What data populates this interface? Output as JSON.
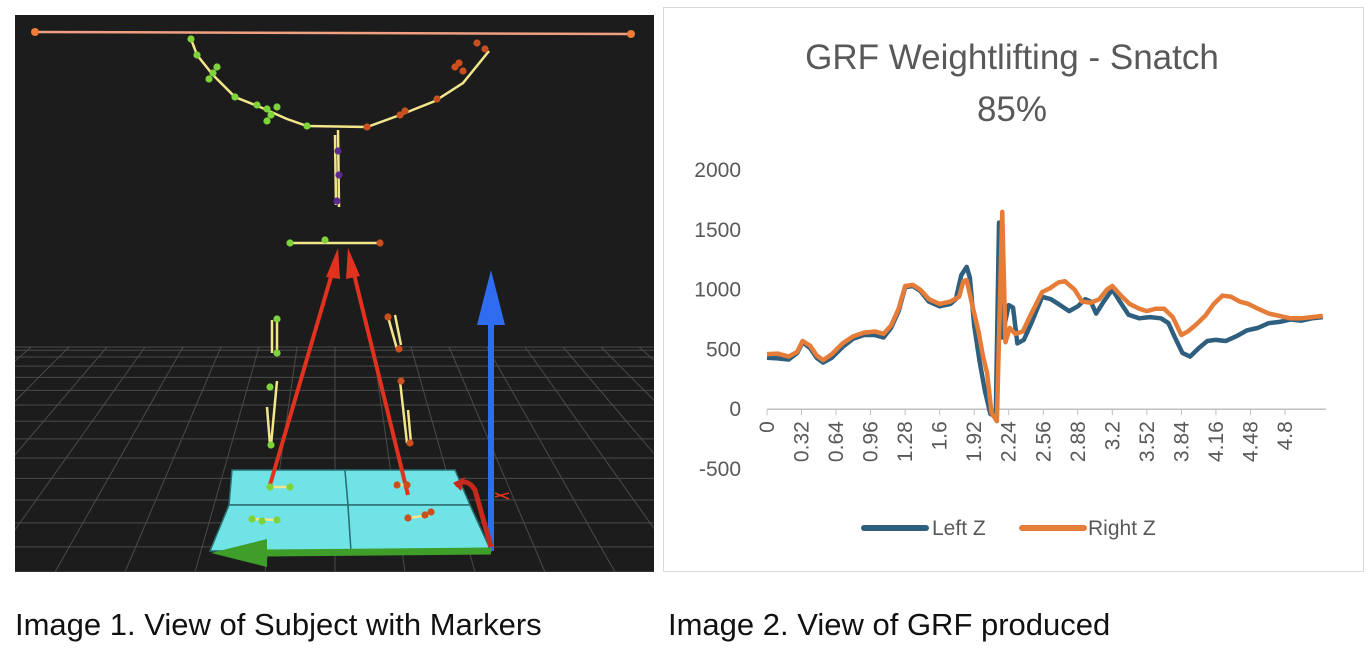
{
  "captions": {
    "left": "Image 1. View of Subject with Markers",
    "right": "Image 2. View of GRF produced"
  },
  "colors": {
    "scene_background": "#1c1c1c",
    "force_plate": "#6fe3e6",
    "bone": "#f2e68a",
    "left_marker": "#7cd33a",
    "right_marker": "#c9501e",
    "spine_marker": "#5a2a8c",
    "grf_vector": "#e0321f",
    "axis_z": "#2f6cf0",
    "axis_x": "#3f9e2a",
    "left_series": "#2e5f7f",
    "right_series": "#e57c37"
  },
  "scene_icons": [
    "force-plate-icon",
    "grf-vector-icon",
    "z-axis-arrow-icon",
    "x-axis-arrow-icon",
    "rotation-gizmo-icon",
    "marker-icon"
  ],
  "chart_data": {
    "type": "line",
    "title_lines": [
      "GRF Weightlifting - Snatch",
      "85%"
    ],
    "xlabel": "",
    "ylabel": "",
    "x_tick_labels": [
      "0",
      "0.32",
      "0.64",
      "0.96",
      "1.28",
      "1.6",
      "1.92",
      "2.24",
      "2.56",
      "2.88",
      "3.2",
      "3.52",
      "3.84",
      "4.16",
      "4.48",
      "4.8"
    ],
    "xlim": [
      0,
      5.18
    ],
    "ylim": [
      -500,
      2000
    ],
    "y_ticks": [
      2000,
      1500,
      1000,
      500,
      0,
      -500
    ],
    "grid": false,
    "legend_position": "bottom",
    "series": [
      {
        "name": "Left Z",
        "color": "#2e5f7f",
        "points": [
          [
            0,
            430
          ],
          [
            0.1,
            425
          ],
          [
            0.2,
            415
          ],
          [
            0.28,
            470
          ],
          [
            0.33,
            560
          ],
          [
            0.4,
            510
          ],
          [
            0.46,
            430
          ],
          [
            0.52,
            390
          ],
          [
            0.6,
            430
          ],
          [
            0.7,
            520
          ],
          [
            0.8,
            590
          ],
          [
            0.9,
            620
          ],
          [
            1.0,
            620
          ],
          [
            1.08,
            600
          ],
          [
            1.15,
            680
          ],
          [
            1.22,
            820
          ],
          [
            1.28,
            1020
          ],
          [
            1.35,
            1030
          ],
          [
            1.42,
            990
          ],
          [
            1.5,
            900
          ],
          [
            1.6,
            860
          ],
          [
            1.7,
            880
          ],
          [
            1.75,
            920
          ],
          [
            1.8,
            1120
          ],
          [
            1.85,
            1190
          ],
          [
            1.88,
            1100
          ],
          [
            1.92,
            700
          ],
          [
            1.97,
            400
          ],
          [
            2.02,
            150
          ],
          [
            2.07,
            -40
          ],
          [
            2.12,
            -60
          ],
          [
            2.15,
            1560
          ],
          [
            2.18,
            600
          ],
          [
            2.2,
            700
          ],
          [
            2.24,
            870
          ],
          [
            2.28,
            850
          ],
          [
            2.32,
            550
          ],
          [
            2.38,
            580
          ],
          [
            2.45,
            720
          ],
          [
            2.55,
            940
          ],
          [
            2.63,
            920
          ],
          [
            2.7,
            880
          ],
          [
            2.8,
            820
          ],
          [
            2.88,
            860
          ],
          [
            2.95,
            920
          ],
          [
            3.0,
            900
          ],
          [
            3.05,
            800
          ],
          [
            3.12,
            900
          ],
          [
            3.2,
            1000
          ],
          [
            3.27,
            900
          ],
          [
            3.35,
            790
          ],
          [
            3.45,
            760
          ],
          [
            3.55,
            770
          ],
          [
            3.65,
            760
          ],
          [
            3.72,
            720
          ],
          [
            3.78,
            600
          ],
          [
            3.85,
            470
          ],
          [
            3.92,
            440
          ],
          [
            4.0,
            510
          ],
          [
            4.08,
            570
          ],
          [
            4.16,
            580
          ],
          [
            4.25,
            570
          ],
          [
            4.35,
            610
          ],
          [
            4.45,
            660
          ],
          [
            4.55,
            680
          ],
          [
            4.65,
            720
          ],
          [
            4.75,
            730
          ],
          [
            4.85,
            750
          ],
          [
            4.95,
            740
          ],
          [
            5.05,
            760
          ],
          [
            5.15,
            770
          ]
        ]
      },
      {
        "name": "Right Z",
        "color": "#e57c37",
        "points": [
          [
            0,
            460
          ],
          [
            0.1,
            465
          ],
          [
            0.2,
            440
          ],
          [
            0.28,
            480
          ],
          [
            0.33,
            570
          ],
          [
            0.4,
            530
          ],
          [
            0.46,
            450
          ],
          [
            0.52,
            410
          ],
          [
            0.6,
            460
          ],
          [
            0.7,
            550
          ],
          [
            0.8,
            610
          ],
          [
            0.9,
            640
          ],
          [
            1.0,
            650
          ],
          [
            1.08,
            630
          ],
          [
            1.15,
            700
          ],
          [
            1.22,
            840
          ],
          [
            1.28,
            1030
          ],
          [
            1.35,
            1040
          ],
          [
            1.42,
            1000
          ],
          [
            1.5,
            920
          ],
          [
            1.6,
            880
          ],
          [
            1.7,
            900
          ],
          [
            1.78,
            940
          ],
          [
            1.82,
            1070
          ],
          [
            1.85,
            1080
          ],
          [
            1.9,
            880
          ],
          [
            1.96,
            650
          ],
          [
            2.0,
            450
          ],
          [
            2.04,
            300
          ],
          [
            2.08,
            -30
          ],
          [
            2.13,
            -100
          ],
          [
            2.18,
            1650
          ],
          [
            2.21,
            560
          ],
          [
            2.25,
            680
          ],
          [
            2.3,
            630
          ],
          [
            2.37,
            650
          ],
          [
            2.45,
            800
          ],
          [
            2.55,
            980
          ],
          [
            2.62,
            1010
          ],
          [
            2.7,
            1060
          ],
          [
            2.76,
            1070
          ],
          [
            2.85,
            1000
          ],
          [
            2.92,
            900
          ],
          [
            3.0,
            890
          ],
          [
            3.08,
            920
          ],
          [
            3.15,
            1000
          ],
          [
            3.2,
            1030
          ],
          [
            3.28,
            950
          ],
          [
            3.36,
            880
          ],
          [
            3.45,
            840
          ],
          [
            3.52,
            820
          ],
          [
            3.6,
            840
          ],
          [
            3.68,
            840
          ],
          [
            3.76,
            770
          ],
          [
            3.84,
            620
          ],
          [
            3.9,
            650
          ],
          [
            3.98,
            710
          ],
          [
            4.06,
            780
          ],
          [
            4.14,
            880
          ],
          [
            4.22,
            950
          ],
          [
            4.3,
            940
          ],
          [
            4.38,
            900
          ],
          [
            4.46,
            880
          ],
          [
            4.55,
            840
          ],
          [
            4.65,
            800
          ],
          [
            4.75,
            780
          ],
          [
            4.85,
            760
          ],
          [
            4.95,
            760
          ],
          [
            5.05,
            770
          ],
          [
            5.15,
            780
          ]
        ]
      }
    ]
  }
}
